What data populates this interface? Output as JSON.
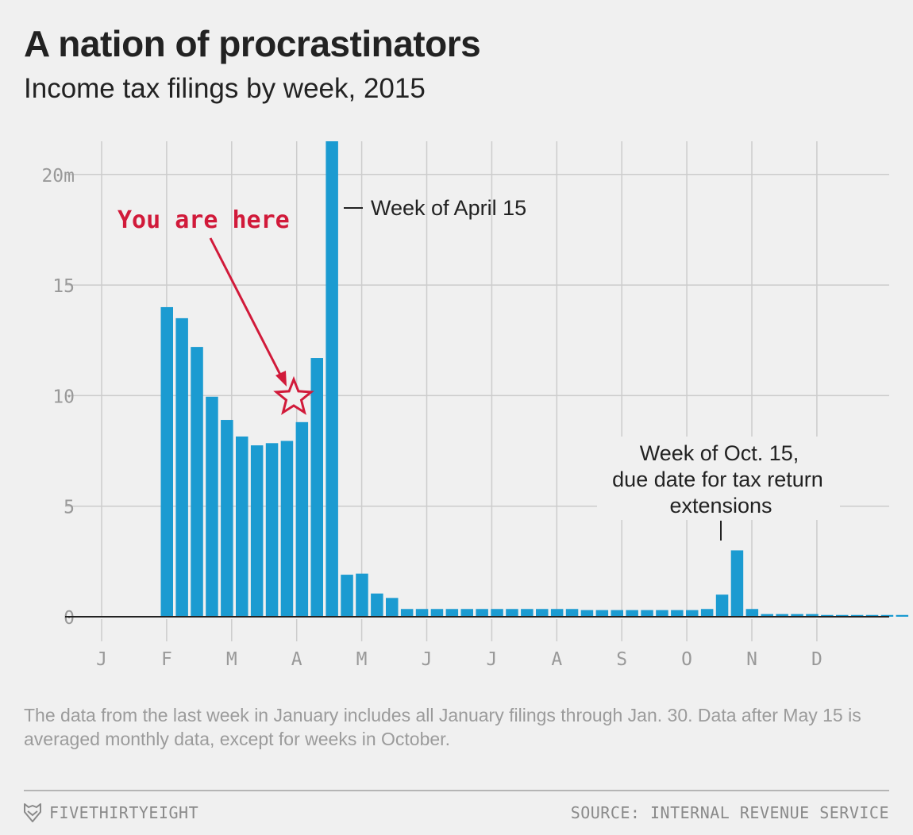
{
  "title": "A nation of procrastinators",
  "subtitle": "Income tax filings by week, 2015",
  "colors": {
    "bar": "#1b9bd1",
    "annotation_red": "#d11a3a",
    "grid": "#cccccc",
    "axis_text": "#999999",
    "background": "#f0f0f0"
  },
  "chart_data": {
    "type": "bar",
    "ylabel": "",
    "xlabel": "",
    "ylim": [
      0,
      21.5
    ],
    "y_ticks": [
      {
        "value": 0,
        "label": "0"
      },
      {
        "value": 5,
        "label": "5"
      },
      {
        "value": 10,
        "label": "10"
      },
      {
        "value": 15,
        "label": "15"
      },
      {
        "value": 20,
        "label": "20m"
      }
    ],
    "x_ticks": [
      "J",
      "F",
      "M",
      "A",
      "M",
      "J",
      "J",
      "A",
      "S",
      "O",
      "N",
      "D"
    ],
    "grid": true,
    "first_bar_week_index": 4,
    "values": [
      14.0,
      13.5,
      12.2,
      9.95,
      8.9,
      8.15,
      7.75,
      7.85,
      7.95,
      8.8,
      11.7,
      21.5,
      1.9,
      1.95,
      1.05,
      0.85,
      0.35,
      0.35,
      0.35,
      0.35,
      0.35,
      0.35,
      0.35,
      0.35,
      0.35,
      0.35,
      0.35,
      0.35,
      0.3,
      0.3,
      0.3,
      0.3,
      0.3,
      0.3,
      0.3,
      0.3,
      0.35,
      1.0,
      3.0,
      0.35,
      0.12,
      0.12,
      0.12,
      0.12,
      0.08,
      0.08,
      0.08,
      0.08,
      0.08,
      0.08
    ],
    "annotations": [
      {
        "label": "Week of April 15"
      },
      {
        "lines": [
          "Week of Oct. 15,",
          "due date for tax return",
          "extensions"
        ]
      },
      {
        "label": "You are here"
      }
    ]
  },
  "note": "The data from the last week in January includes all January filings through Jan. 30. Data after May 15 is averaged monthly data, except for weeks in October.",
  "footer": {
    "brand": "FIVETHIRTYEIGHT",
    "source": "SOURCE: INTERNAL REVENUE SERVICE"
  }
}
